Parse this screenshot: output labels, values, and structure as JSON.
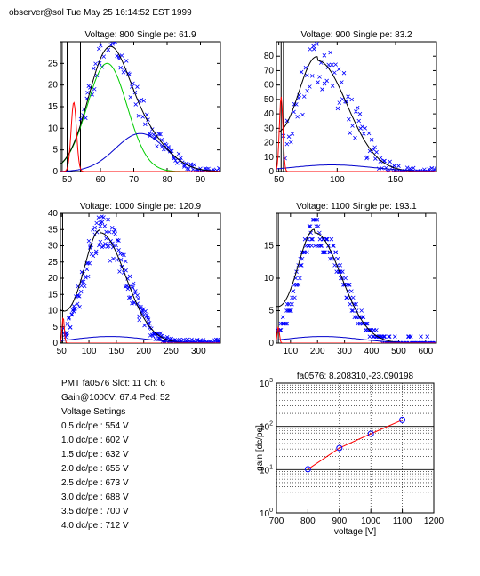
{
  "header": "observer@sol  Tue May 25 16:14:52 EST 1999",
  "info": {
    "line1": "PMT fa0576 Slot: 11 Ch: 6",
    "line2": "Gain@1000V: 67.4 Ped: 52",
    "line3": "Voltage Settings",
    "settings": [
      "0.5 dc/pe : 554 V",
      "1.0 dc/pe : 602 V",
      "1.5 dc/pe : 632 V",
      "2.0 dc/pe : 655 V",
      "2.5 dc/pe : 673 V",
      "3.0 dc/pe : 688 V",
      "3.5 dc/pe : 700 V",
      "4.0 dc/pe : 712 V"
    ]
  },
  "colors": {
    "data": "#0000ff",
    "fit": "#000000",
    "gauss1": "#00cc00",
    "gauss2": "#0000cc",
    "pedestal": "#ff0000",
    "gainline": "#ff0000"
  },
  "chart_data": [
    {
      "type": "scatter",
      "title": "Voltage: 800 Single pe: 61.9",
      "xlim": [
        48,
        96
      ],
      "ylim": [
        0,
        30
      ],
      "xticks": [
        50,
        60,
        70,
        80,
        90
      ],
      "yticks": [
        0,
        5,
        10,
        15,
        20,
        25
      ],
      "peak": 62,
      "width": 9,
      "amp": 30,
      "gauss1": {
        "mu": 62,
        "sigma": 6,
        "amp": 25
      },
      "gauss2": {
        "mu": 72,
        "sigma": 7.5,
        "amp": 8.8
      },
      "pedestal": {
        "mu": 52,
        "sigma": 0.8,
        "amp": 16
      },
      "vlines": [
        48.5,
        50,
        54
      ]
    },
    {
      "type": "scatter",
      "title": "Voltage: 900 Single pe: 83.2",
      "xlim": [
        48,
        185
      ],
      "ylim": [
        0,
        90
      ],
      "xticks": [
        50,
        100,
        150
      ],
      "yticks": [
        0,
        10,
        20,
        30,
        40,
        50,
        60,
        70,
        80
      ],
      "peak": 83,
      "width": 22,
      "amp": 77,
      "pedestal": {
        "mu": 52,
        "sigma": 1.5,
        "amp": 52
      },
      "vlines": [
        52,
        54
      ]
    },
    {
      "type": "scatter",
      "title": "Voltage: 1000 Single pe: 120.9",
      "xlim": [
        48,
        340
      ],
      "ylim": [
        0,
        40
      ],
      "xticks": [
        50,
        100,
        150,
        200,
        250,
        300
      ],
      "yticks": [
        0,
        5,
        10,
        15,
        20,
        25,
        30,
        35,
        40
      ],
      "peak": 121,
      "width": 40,
      "amp": 34,
      "pedestal": {
        "mu": 53,
        "sigma": 2,
        "amp": 8
      },
      "vlines": [
        52
      ]
    },
    {
      "type": "scatter",
      "title": "Voltage: 1100 Single pe: 193.1",
      "xlim": [
        48,
        640
      ],
      "ylim": [
        0,
        20
      ],
      "xticks": [
        100,
        200,
        300,
        400,
        500,
        600
      ],
      "yticks": [
        0,
        5,
        10,
        15
      ],
      "peak": 190,
      "width": 85,
      "amp": 17,
      "pedestal": {
        "mu": 55,
        "sigma": 4,
        "amp": 2.5
      },
      "vlines": [
        55
      ]
    },
    {
      "type": "line",
      "title": "fa0576: 8.208310,-23.090198",
      "xlabel": "voltage [V]",
      "ylabel": "gain [dc/pe]",
      "xlim": [
        700,
        1200
      ],
      "ylim": [
        1,
        1000
      ],
      "yscale": "log",
      "xticks": [
        700,
        800,
        900,
        1000,
        1100,
        1200
      ],
      "yticks": [
        1,
        10,
        100,
        1000
      ],
      "ytick_labels": [
        {
          "base": "10",
          "exp": "0"
        },
        {
          "base": "10",
          "exp": "1"
        },
        {
          "base": "10",
          "exp": "2"
        },
        {
          "base": "10",
          "exp": "3"
        }
      ],
      "grid": true,
      "x": [
        800,
        900,
        1000,
        1100
      ],
      "y": [
        10.2,
        31.5,
        67.4,
        141
      ]
    }
  ]
}
